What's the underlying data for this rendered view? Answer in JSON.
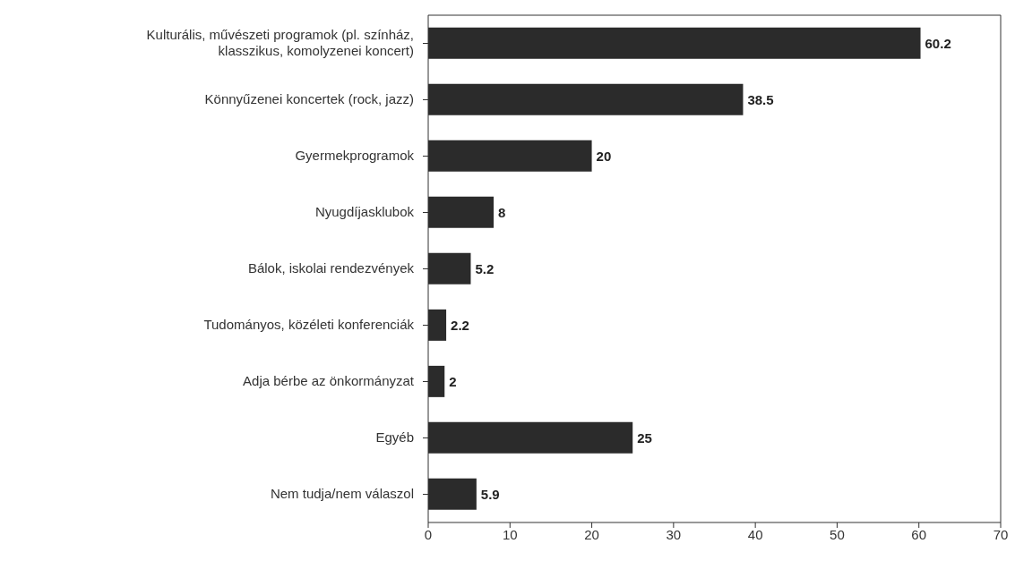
{
  "chart_data": {
    "type": "bar",
    "orientation": "horizontal",
    "categories": [
      "Kulturális, művészeti programok (pl. színház, klasszikus, komolyzenei koncert)",
      "Könnyűzenei koncertek (rock, jazz)",
      "Gyermekprogramok",
      "Nyugdíjasklubok",
      "Bálok, iskolai rendezvények",
      "Tudományos, közéleti konferenciák",
      "Adja bérbe az önkormányzat",
      "Egyéb",
      "Nem tudja/nem válaszol"
    ],
    "values": [
      60.2,
      38.5,
      20,
      8,
      5.2,
      2.2,
      2,
      25,
      5.9
    ],
    "color": "#2b2b2b",
    "data_labels": true,
    "xlim": [
      0,
      70
    ],
    "xticks": [
      0,
      10,
      20,
      30,
      40,
      50,
      60,
      70
    ],
    "grid": false
  }
}
